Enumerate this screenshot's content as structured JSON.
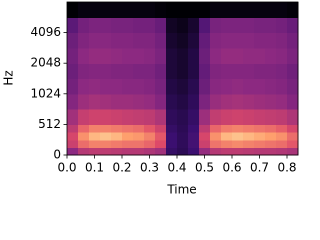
{
  "chart_data": {
    "type": "heatmap",
    "xlabel": "Time",
    "ylabel": "Hz",
    "xlim": [
      0,
      0.84
    ],
    "xticks": [
      {
        "value": 0,
        "label": "0.0"
      },
      0.1,
      0.2,
      0.3,
      0.4,
      0.5,
      0.6,
      0.7,
      0.8
    ],
    "ylim": [
      0,
      8192
    ],
    "yscale": "symlog",
    "linthresh": 512,
    "yticks": [
      0,
      512,
      1024,
      2048,
      4096
    ],
    "colormap": "magma",
    "zlim": [
      -80,
      0
    ],
    "xbins": [
      0,
      0.04,
      0.08,
      0.12,
      0.16,
      0.2,
      0.24,
      0.28,
      0.32,
      0.36,
      0.4,
      0.44,
      0.48,
      0.52,
      0.56,
      0.6,
      0.64,
      0.68,
      0.72,
      0.76,
      0.8,
      0.84
    ],
    "ybins": [
      0,
      128,
      256,
      384,
      512,
      724,
      1024,
      1448,
      2048,
      2896,
      4096,
      5793,
      8192
    ],
    "z": [
      [
        -40,
        -30,
        -28,
        -28,
        -29,
        -30,
        -30,
        -32,
        -35,
        -62,
        -65,
        -60,
        -38,
        -30,
        -28,
        -28,
        -29,
        -30,
        -30,
        -31,
        -33
      ],
      [
        -25,
        -15,
        -12,
        -12,
        -13,
        -14,
        -14,
        -16,
        -20,
        -60,
        -64,
        -58,
        -25,
        -14,
        -12,
        -11,
        -12,
        -13,
        -14,
        -15,
        -18
      ],
      [
        -22,
        -10,
        -6,
        -5,
        -6,
        -8,
        -9,
        -12,
        -18,
        -60,
        -64,
        -58,
        -22,
        -10,
        -6,
        -5,
        -6,
        -7,
        -8,
        -10,
        -15
      ],
      [
        -28,
        -16,
        -12,
        -12,
        -13,
        -14,
        -15,
        -18,
        -24,
        -62,
        -65,
        -60,
        -28,
        -16,
        -13,
        -12,
        -13,
        -14,
        -15,
        -17,
        -22
      ],
      [
        -35,
        -26,
        -24,
        -24,
        -25,
        -26,
        -27,
        -28,
        -32,
        -64,
        -66,
        -62,
        -36,
        -27,
        -25,
        -24,
        -25,
        -26,
        -27,
        -28,
        -32
      ],
      [
        -42,
        -36,
        -34,
        -35,
        -36,
        -36,
        -37,
        -38,
        -42,
        -66,
        -68,
        -64,
        -44,
        -37,
        -35,
        -34,
        -35,
        -36,
        -37,
        -38,
        -42
      ],
      [
        -46,
        -40,
        -39,
        -40,
        -40,
        -41,
        -41,
        -42,
        -45,
        -68,
        -70,
        -66,
        -48,
        -41,
        -40,
        -39,
        -40,
        -40,
        -41,
        -42,
        -45
      ],
      [
        -48,
        -43,
        -42,
        -42,
        -43,
        -43,
        -44,
        -44,
        -47,
        -70,
        -72,
        -68,
        -50,
        -43,
        -42,
        -42,
        -42,
        -43,
        -43,
        -44,
        -47
      ],
      [
        -46,
        -40,
        -38,
        -38,
        -39,
        -40,
        -40,
        -41,
        -44,
        -70,
        -72,
        -68,
        -48,
        -40,
        -38,
        -38,
        -39,
        -39,
        -40,
        -41,
        -44
      ],
      [
        -48,
        -43,
        -41,
        -41,
        -42,
        -42,
        -43,
        -43,
        -46,
        -72,
        -74,
        -70,
        -50,
        -42,
        -41,
        -41,
        -41,
        -42,
        -42,
        -43,
        -46
      ],
      [
        -52,
        -46,
        -44,
        -44,
        -45,
        -45,
        -46,
        -46,
        -49,
        -74,
        -76,
        -72,
        -54,
        -45,
        -44,
        -44,
        -44,
        -45,
        -45,
        -46,
        -49
      ],
      [
        -80,
        -78,
        -78,
        -78,
        -78,
        -78,
        -78,
        -78,
        -79,
        -80,
        -80,
        -80,
        -80,
        -78,
        -78,
        -78,
        -78,
        -78,
        -78,
        -78,
        -79
      ]
    ]
  }
}
